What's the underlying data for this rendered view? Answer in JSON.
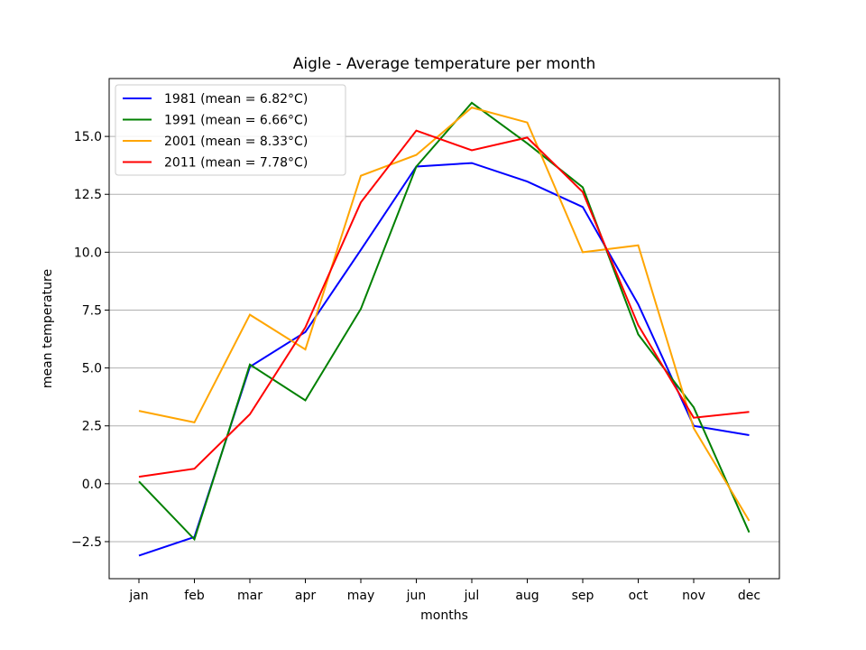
{
  "chart_data": {
    "type": "line",
    "title": "Aigle - Average temperature per month",
    "xlabel": "months",
    "ylabel": "mean temperature",
    "categories": [
      "jan",
      "feb",
      "mar",
      "apr",
      "may",
      "jun",
      "jul",
      "aug",
      "sep",
      "oct",
      "nov",
      "dec"
    ],
    "ylim": [
      -4.1,
      17.5
    ],
    "yticks": [
      -2.5,
      0.0,
      2.5,
      5.0,
      7.5,
      10.0,
      12.5,
      15.0
    ],
    "ytick_labels": [
      "−2.5",
      "0.0",
      "2.5",
      "5.0",
      "7.5",
      "10.0",
      "12.5",
      "15.0"
    ],
    "grid": "y-axis",
    "legend_position": "top-left",
    "series": [
      {
        "name": "1981 (mean = 6.82°C)",
        "color": "#0000ff",
        "values": [
          -3.1,
          -2.3,
          5.05,
          6.55,
          10.1,
          13.7,
          13.85,
          13.05,
          11.95,
          7.75,
          2.5,
          2.1
        ]
      },
      {
        "name": "1991 (mean = 6.66°C)",
        "color": "#008000",
        "values": [
          0.1,
          -2.4,
          5.15,
          3.6,
          7.55,
          13.7,
          16.45,
          14.7,
          12.8,
          6.45,
          3.3,
          -2.1
        ]
      },
      {
        "name": "2001 (mean = 8.33°C)",
        "color": "#ffa500",
        "values": [
          3.15,
          2.65,
          7.3,
          5.8,
          13.3,
          14.2,
          16.25,
          15.6,
          10.0,
          10.3,
          2.4,
          -1.6
        ]
      },
      {
        "name": "2011 (mean = 7.78°C)",
        "color": "#ff0000",
        "values": [
          0.3,
          0.65,
          3.0,
          6.75,
          12.15,
          15.25,
          14.4,
          14.95,
          12.6,
          6.85,
          2.85,
          3.1
        ]
      }
    ]
  }
}
